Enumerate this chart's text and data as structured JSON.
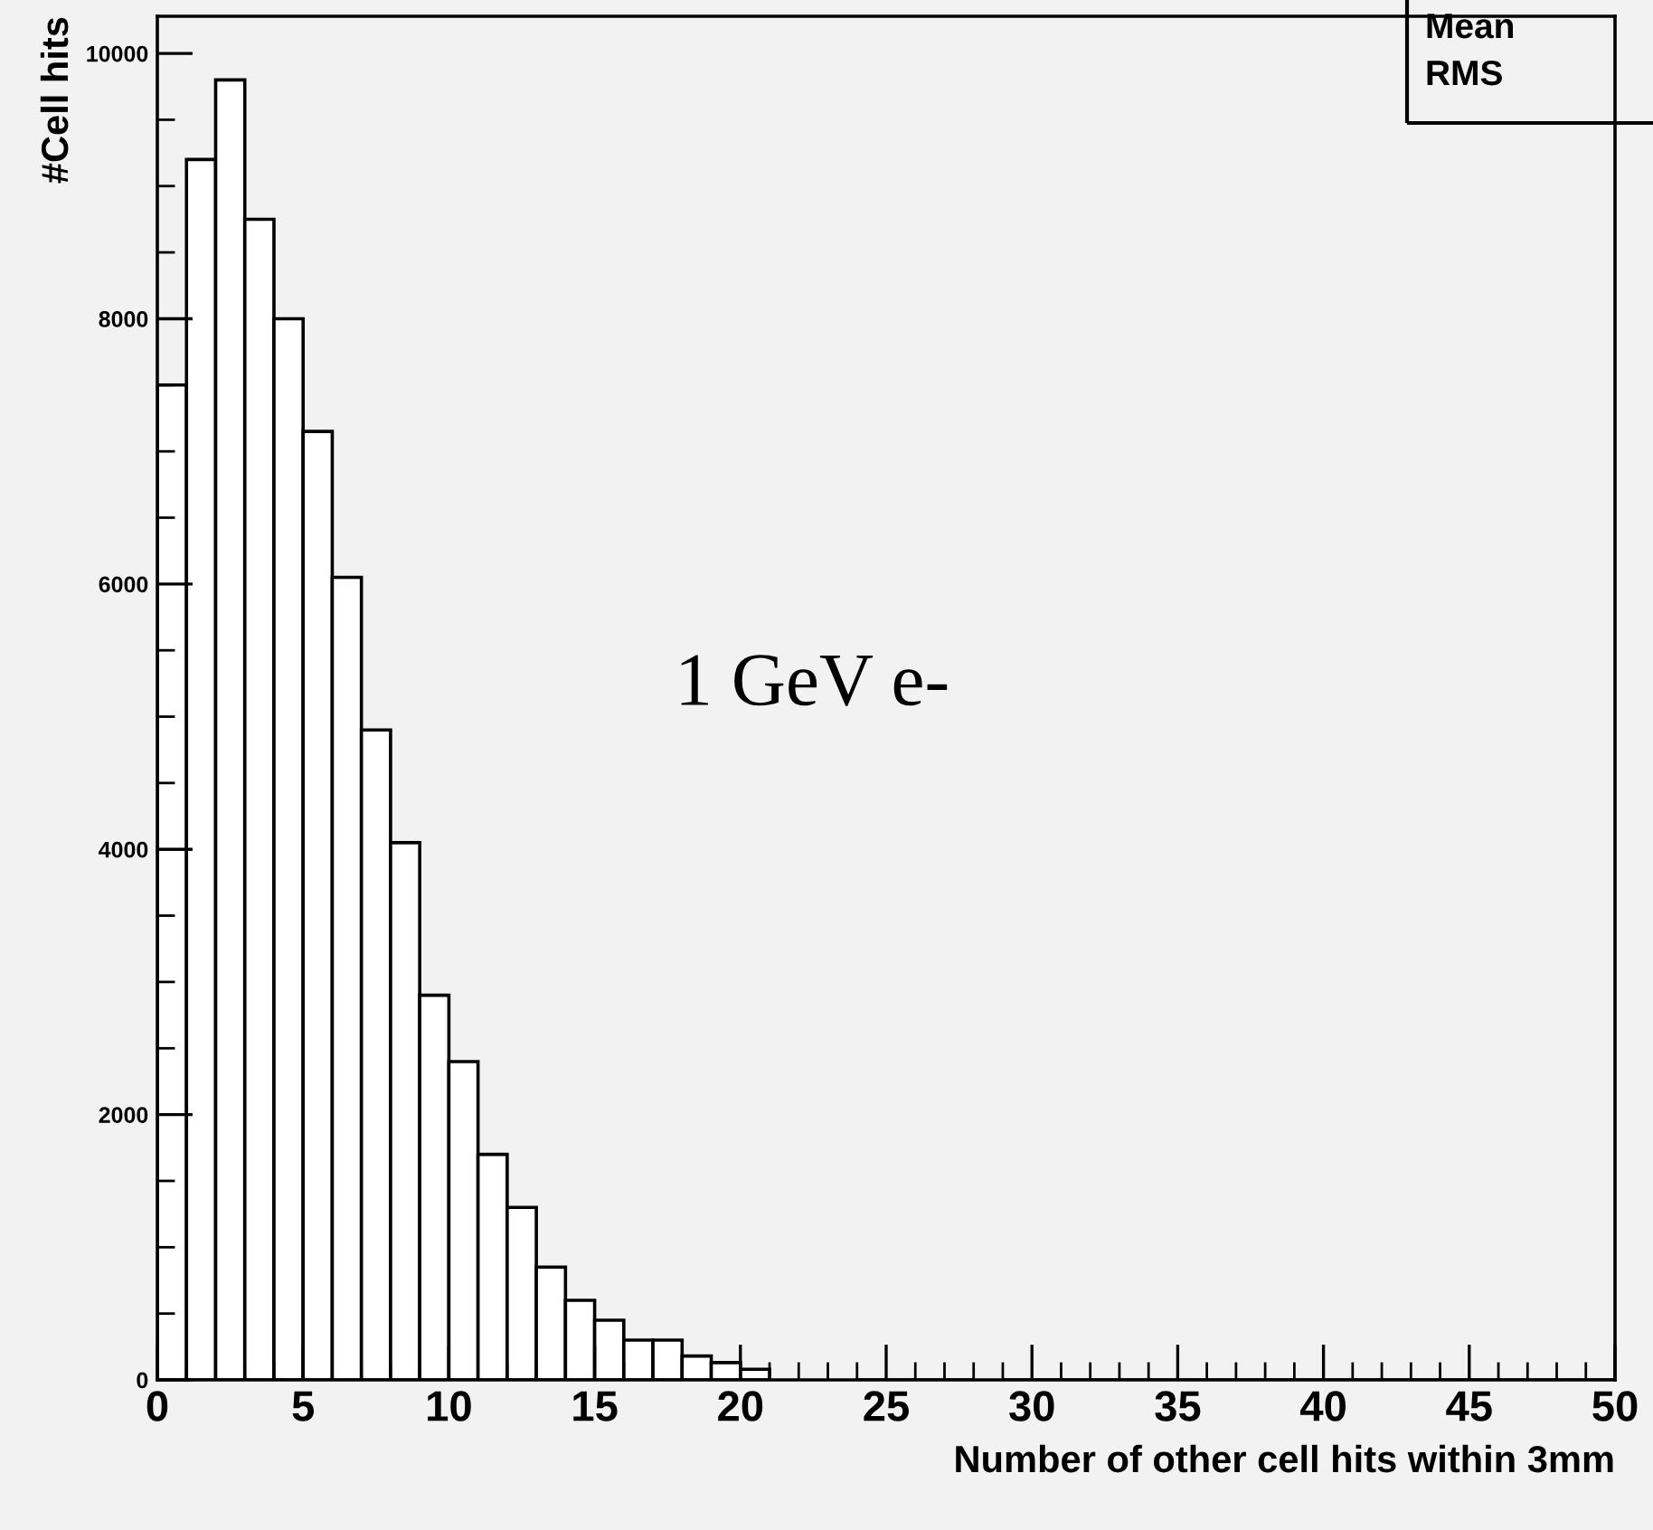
{
  "chart_data": {
    "type": "histogram",
    "xlabel": "Number of other cell hits within 3mm",
    "ylabel": "#Cell hits",
    "bins": [
      0,
      1,
      2,
      3,
      4,
      5,
      6,
      7,
      8,
      9,
      10,
      11,
      12,
      13,
      14,
      15,
      16,
      17,
      18,
      19,
      20,
      21,
      22,
      23,
      24,
      25,
      26,
      27,
      28,
      29,
      30,
      31,
      32,
      33,
      34,
      35,
      36,
      37,
      38,
      39,
      40,
      41,
      42,
      43,
      44,
      45,
      46,
      47,
      48,
      49,
      50
    ],
    "values": [
      7500,
      9200,
      9800,
      8750,
      8000,
      7150,
      6050,
      4900,
      4050,
      2900,
      2400,
      1700,
      1300,
      850,
      600,
      450,
      300,
      300,
      180,
      130,
      80,
      null,
      null,
      null,
      0,
      0,
      0,
      0,
      null,
      0,
      0,
      0,
      0,
      0,
      0,
      0,
      0,
      0,
      0,
      0,
      0,
      0,
      0,
      0,
      0,
      0,
      0,
      0,
      0,
      0
    ],
    "color": "#ffffff",
    "xlim": [
      0,
      50
    ],
    "xticks": [
      0,
      5,
      10,
      15,
      20,
      25,
      30,
      35,
      40,
      45,
      50
    ],
    "ylim": [
      0,
      10280
    ],
    "yticks": [
      0,
      2000,
      4000,
      6000,
      8000,
      10000
    ],
    "grid": false,
    "legend": false,
    "annotations": [
      "1 GeV e-",
      "Mean",
      "RMS"
    ]
  }
}
